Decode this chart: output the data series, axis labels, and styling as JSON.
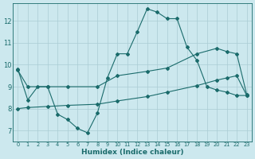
{
  "xlabel": "Humidex (Indice chaleur)",
  "xlim": [
    -0.5,
    23.5
  ],
  "ylim": [
    6.5,
    12.8
  ],
  "xticks": [
    0,
    1,
    2,
    3,
    4,
    5,
    6,
    7,
    8,
    9,
    10,
    11,
    12,
    13,
    14,
    15,
    16,
    17,
    18,
    19,
    20,
    21,
    22,
    23
  ],
  "yticks": [
    7,
    8,
    9,
    10,
    11,
    12
  ],
  "bg_color": "#cce8ee",
  "line_color": "#1a6b6b",
  "grid_color": "#aaccd4",
  "line1_x": [
    0,
    1,
    2,
    3,
    4,
    5,
    6,
    7,
    8,
    9,
    10,
    11,
    12,
    13,
    14,
    15,
    16,
    17,
    18,
    19,
    20,
    21,
    22,
    23
  ],
  "line1_y": [
    9.8,
    8.4,
    9.0,
    9.0,
    7.75,
    7.5,
    7.1,
    6.9,
    7.8,
    9.4,
    10.5,
    10.5,
    11.5,
    12.55,
    12.4,
    12.1,
    12.1,
    10.8,
    10.2,
    9.0,
    8.85,
    8.75,
    8.6,
    8.6
  ],
  "line2_x": [
    0,
    1,
    3,
    5,
    8,
    10,
    13,
    15,
    18,
    20,
    21,
    22,
    23
  ],
  "line2_y": [
    8.0,
    8.05,
    8.1,
    8.15,
    8.2,
    8.35,
    8.55,
    8.75,
    9.05,
    9.3,
    9.4,
    9.5,
    8.6
  ],
  "line3_x": [
    0,
    1,
    3,
    5,
    8,
    10,
    13,
    15,
    18,
    20,
    21,
    22,
    23
  ],
  "line3_y": [
    9.75,
    9.0,
    9.0,
    9.0,
    9.0,
    9.5,
    9.7,
    9.85,
    10.5,
    10.75,
    10.6,
    10.5,
    8.65
  ]
}
